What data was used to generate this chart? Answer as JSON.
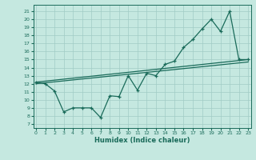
{
  "xlabel": "Humidex (Indice chaleur)",
  "background_color": "#c5e8e0",
  "line_color": "#1a6b5a",
  "grid_color": "#a0ccc5",
  "x_ticks": [
    0,
    1,
    2,
    3,
    4,
    5,
    6,
    7,
    8,
    9,
    10,
    11,
    12,
    13,
    14,
    15,
    16,
    17,
    18,
    19,
    20,
    21,
    22,
    23
  ],
  "y_ticks": [
    7,
    8,
    9,
    10,
    11,
    12,
    13,
    14,
    15,
    16,
    17,
    18,
    19,
    20,
    21
  ],
  "ylim": [
    6.5,
    21.8
  ],
  "xlim": [
    -0.3,
    23.3
  ],
  "line1_x": [
    0,
    1,
    2,
    3,
    4,
    5,
    6,
    7,
    8,
    9,
    10,
    11,
    12,
    13,
    14,
    15,
    16,
    17,
    18,
    19,
    20,
    21,
    22,
    23
  ],
  "line1_y": [
    12.2,
    12.0,
    11.1,
    8.5,
    9.0,
    9.0,
    9.0,
    7.8,
    10.5,
    10.4,
    13.0,
    11.2,
    13.3,
    13.0,
    14.4,
    14.8,
    16.5,
    17.5,
    18.8,
    20.0,
    18.5,
    21.0,
    15.0,
    15.0
  ],
  "line2_x": [
    0,
    23
  ],
  "line2_y": [
    12.2,
    15.0
  ],
  "line3_x": [
    0,
    23
  ],
  "line3_y": [
    12.0,
    14.7
  ]
}
